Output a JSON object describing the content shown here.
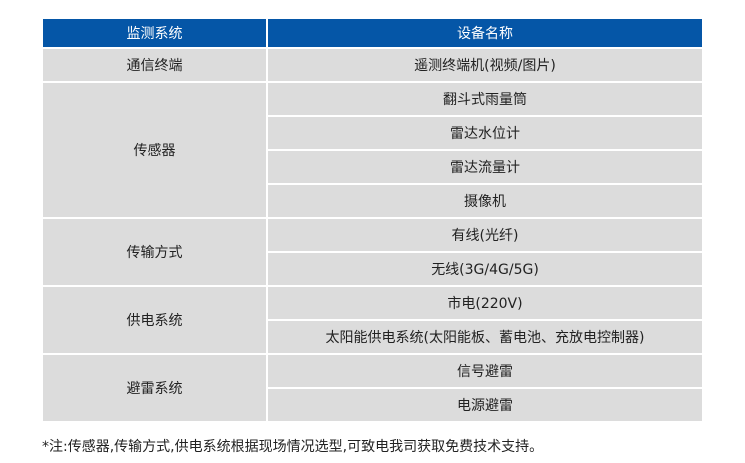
{
  "table": {
    "headers": [
      "监测系统",
      "设备名称"
    ],
    "groups": [
      {
        "system": "通信终端",
        "devices": [
          "遥测终端机(视频/图片)"
        ]
      },
      {
        "system": "传感器",
        "devices": [
          "翻斗式雨量筒",
          "雷达水位计",
          "雷达流量计",
          "摄像机"
        ]
      },
      {
        "system": "传输方式",
        "devices": [
          "有线(光纤)",
          "无线(3G/4G/5G)"
        ]
      },
      {
        "system": "供电系统",
        "devices": [
          "市电(220V)",
          "太阳能供电系统(太阳能板、蓄电池、充放电控制器)"
        ]
      },
      {
        "system": "避雷系统",
        "devices": [
          "信号避雷",
          "电源避雷"
        ]
      }
    ]
  },
  "note": "*注:传感器,传输方式,供电系统根据现场情况选型,可致电我司获取免费技术支持。",
  "colors": {
    "header": "#0556a7",
    "cell": "#dcdcdc"
  }
}
